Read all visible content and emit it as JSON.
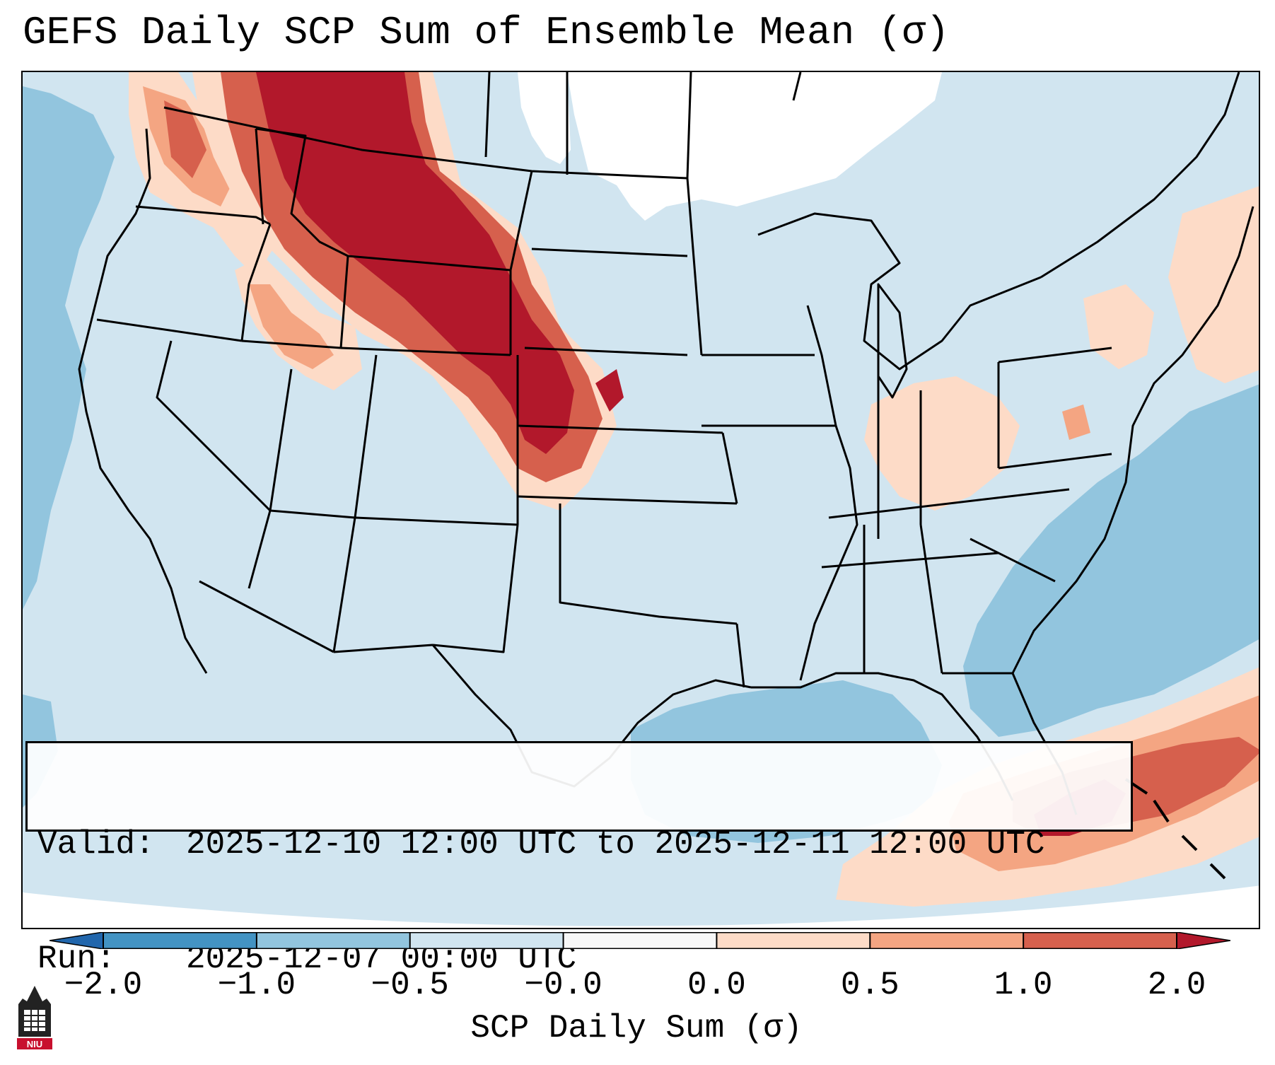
{
  "title": "GEFS Daily SCP Sum of Ensemble Mean (σ)",
  "info": {
    "valid_label": "Valid:",
    "valid_value": "2025-12-10 12:00 UTC to 2025-12-11 12:00 UTC",
    "run_label": "Run:",
    "run_value": "2025-12-07 00:00 UTC"
  },
  "colorbar": {
    "label": "SCP Daily Sum (σ)",
    "ticks": [
      "−2.0",
      "−1.0",
      "−0.5",
      "−0.0",
      "0.0",
      "0.5",
      "1.0",
      "2.0"
    ],
    "colors": [
      "#2166ac",
      "#4393c3",
      "#92c5de",
      "#d1e5f0",
      "#f7f7f7",
      "#fddbc7",
      "#f4a582",
      "#d6604d",
      "#b2182b"
    ],
    "under_color": "#2166ac",
    "over_color": "#b2182b"
  },
  "map": {
    "background_color": "#d1e5f0",
    "neutral_color": "#ffffff",
    "features": [
      {
        "name": "pacific-negative-band",
        "category": "-1.0 to -0.5"
      },
      {
        "name": "northern-rockies-high-plains",
        "category": "1.0 to 2.0"
      },
      {
        "name": "pacific-northwest-coast",
        "category": "0.5 to 1.0"
      },
      {
        "name": "gulf-of-mexico-negative",
        "category": "-1.0 to -0.5"
      },
      {
        "name": "western-atlantic-negative",
        "category": "-1.0 to -0.5"
      },
      {
        "name": "bahamas-caribbean-positive",
        "category": "1.0 to 2.0"
      }
    ]
  },
  "logo": {
    "text": "NIU",
    "color": "#c8102e"
  }
}
